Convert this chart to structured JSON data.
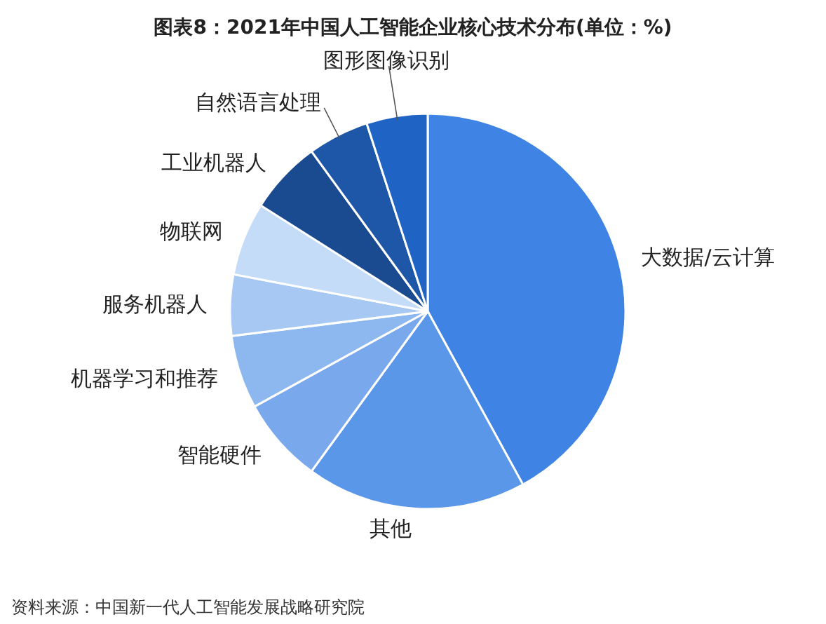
{
  "chart_data": {
    "type": "pie",
    "title": "图表8：2021年中国人工智能企业核心技术分布(单位：%)",
    "categories": [
      "大数据/云计算",
      "其他",
      "智能硬件",
      "机器学习和推荐",
      "服务机器人",
      "物联网",
      "工业机器人",
      "自然语言处理",
      "图形图像识别"
    ],
    "values": [
      42,
      18,
      7,
      6,
      5,
      6,
      6,
      5,
      5
    ],
    "colors": [
      "#3f84e5",
      "#5b97e8",
      "#79a9ec",
      "#8db7ef",
      "#a6c8f3",
      "#c5dcf8",
      "#1a4a8f",
      "#1f57a8",
      "#1f63c4"
    ],
    "annotations": [
      "资料来源：中国新一代人工智能发展战略研究院"
    ]
  }
}
